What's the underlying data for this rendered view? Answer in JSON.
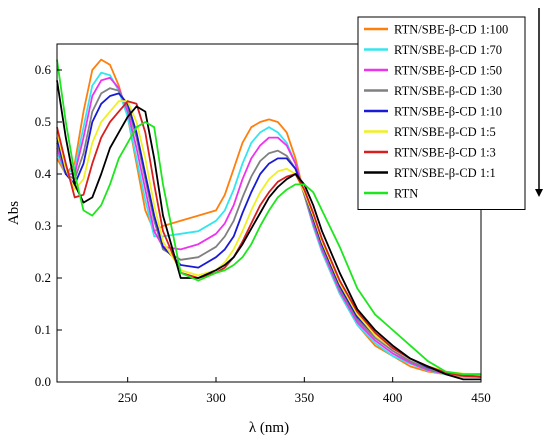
{
  "chart_data": {
    "type": "line",
    "xlabel": "λ (nm)",
    "ylabel": "Abs",
    "xlim": [
      210,
      450
    ],
    "ylim": [
      0.0,
      0.65
    ],
    "xticks": [
      250,
      300,
      350,
      400,
      450
    ],
    "yticks": [
      0.0,
      0.1,
      0.2,
      0.3,
      0.4,
      0.5,
      0.6
    ],
    "ytick_labels": [
      "0.0",
      "0.1",
      "0.2",
      "0.3",
      "0.4",
      "0.5",
      "0.6"
    ],
    "grid": false,
    "legend_position": "top-right",
    "legend_arrow": "down",
    "series": [
      {
        "name": "RTN/SBE-β-CD 1:100",
        "color": "#ff7f0e",
        "x": [
          210,
          215,
          220,
          225,
          230,
          235,
          240,
          245,
          250,
          255,
          260,
          265,
          270,
          280,
          290,
          300,
          305,
          310,
          315,
          320,
          325,
          330,
          335,
          340,
          345,
          350,
          355,
          360,
          370,
          380,
          390,
          400,
          410,
          420,
          430,
          440,
          450
        ],
        "y": [
          0.43,
          0.4,
          0.42,
          0.52,
          0.6,
          0.62,
          0.61,
          0.57,
          0.51,
          0.42,
          0.33,
          0.29,
          0.3,
          0.31,
          0.32,
          0.33,
          0.36,
          0.41,
          0.46,
          0.49,
          0.5,
          0.505,
          0.5,
          0.48,
          0.43,
          0.36,
          0.3,
          0.25,
          0.17,
          0.11,
          0.07,
          0.05,
          0.03,
          0.02,
          0.015,
          0.01,
          0.01
        ]
      },
      {
        "name": "RTN/SBE-β-CD 1:70",
        "color": "#33e6ee",
        "x": [
          210,
          215,
          220,
          225,
          230,
          235,
          240,
          245,
          250,
          255,
          260,
          265,
          270,
          280,
          290,
          300,
          305,
          310,
          315,
          320,
          325,
          330,
          335,
          340,
          345,
          350,
          355,
          360,
          370,
          380,
          390,
          400,
          410,
          420,
          430,
          440,
          450
        ],
        "y": [
          0.44,
          0.4,
          0.41,
          0.49,
          0.57,
          0.595,
          0.59,
          0.56,
          0.51,
          0.43,
          0.35,
          0.28,
          0.28,
          0.285,
          0.29,
          0.31,
          0.33,
          0.37,
          0.42,
          0.46,
          0.48,
          0.49,
          0.48,
          0.46,
          0.42,
          0.36,
          0.3,
          0.25,
          0.17,
          0.11,
          0.075,
          0.05,
          0.035,
          0.022,
          0.015,
          0.012,
          0.01
        ]
      },
      {
        "name": "RTN/SBE-β-CD 1:50",
        "color": "#ee33ee",
        "x": [
          210,
          215,
          220,
          225,
          230,
          235,
          240,
          245,
          250,
          255,
          260,
          265,
          270,
          280,
          290,
          300,
          305,
          310,
          315,
          320,
          325,
          330,
          335,
          340,
          345,
          350,
          355,
          360,
          370,
          380,
          390,
          400,
          410,
          420,
          430,
          440,
          450
        ],
        "y": [
          0.45,
          0.4,
          0.4,
          0.47,
          0.55,
          0.58,
          0.585,
          0.565,
          0.52,
          0.45,
          0.37,
          0.29,
          0.26,
          0.255,
          0.265,
          0.285,
          0.305,
          0.34,
          0.39,
          0.43,
          0.455,
          0.47,
          0.47,
          0.455,
          0.42,
          0.36,
          0.305,
          0.255,
          0.175,
          0.115,
          0.08,
          0.055,
          0.037,
          0.023,
          0.016,
          0.012,
          0.01
        ]
      },
      {
        "name": "RTN/SBE-β-CD 1:30",
        "color": "#808080",
        "x": [
          210,
          215,
          220,
          225,
          230,
          235,
          240,
          245,
          250,
          255,
          260,
          265,
          270,
          280,
          290,
          300,
          305,
          310,
          315,
          320,
          325,
          330,
          335,
          340,
          345,
          350,
          355,
          360,
          370,
          380,
          390,
          400,
          410,
          420,
          430,
          440,
          450
        ],
        "y": [
          0.46,
          0.4,
          0.39,
          0.44,
          0.52,
          0.555,
          0.565,
          0.56,
          0.53,
          0.47,
          0.39,
          0.31,
          0.255,
          0.235,
          0.24,
          0.26,
          0.28,
          0.31,
          0.355,
          0.395,
          0.425,
          0.44,
          0.445,
          0.435,
          0.41,
          0.36,
          0.31,
          0.26,
          0.18,
          0.12,
          0.085,
          0.06,
          0.04,
          0.025,
          0.017,
          0.013,
          0.01
        ]
      },
      {
        "name": "RTN/SBE-β-CD 1:10",
        "color": "#1a1ad6",
        "x": [
          210,
          215,
          220,
          225,
          230,
          235,
          240,
          245,
          250,
          255,
          260,
          265,
          270,
          280,
          290,
          300,
          305,
          310,
          315,
          320,
          325,
          330,
          335,
          340,
          345,
          350,
          355,
          360,
          370,
          380,
          390,
          400,
          410,
          420,
          430,
          440,
          450
        ],
        "y": [
          0.47,
          0.4,
          0.38,
          0.42,
          0.5,
          0.535,
          0.55,
          0.555,
          0.535,
          0.48,
          0.4,
          0.32,
          0.26,
          0.225,
          0.22,
          0.24,
          0.255,
          0.28,
          0.325,
          0.365,
          0.4,
          0.42,
          0.43,
          0.43,
          0.41,
          0.365,
          0.315,
          0.265,
          0.185,
          0.125,
          0.09,
          0.065,
          0.045,
          0.028,
          0.019,
          0.015,
          0.015
        ]
      },
      {
        "name": "RTN/SBE-β-CD 1:5",
        "color": "#f0f020",
        "x": [
          210,
          215,
          220,
          225,
          230,
          235,
          240,
          245,
          250,
          255,
          260,
          265,
          270,
          280,
          290,
          300,
          305,
          310,
          315,
          320,
          325,
          330,
          335,
          340,
          345,
          350,
          355,
          360,
          370,
          380,
          390,
          400,
          410,
          420,
          430,
          440,
          450
        ],
        "y": [
          0.48,
          0.41,
          0.37,
          0.39,
          0.46,
          0.5,
          0.52,
          0.54,
          0.54,
          0.5,
          0.43,
          0.34,
          0.27,
          0.215,
          0.205,
          0.215,
          0.23,
          0.255,
          0.29,
          0.33,
          0.365,
          0.39,
          0.405,
          0.41,
          0.4,
          0.365,
          0.32,
          0.27,
          0.19,
          0.13,
          0.09,
          0.065,
          0.045,
          0.03,
          0.02,
          0.016,
          0.015
        ]
      },
      {
        "name": "RTN/SBE-β-CD 1:3",
        "color": "#d81e1e",
        "x": [
          210,
          215,
          220,
          225,
          230,
          235,
          240,
          245,
          250,
          255,
          260,
          265,
          270,
          280,
          290,
          300,
          305,
          310,
          315,
          320,
          325,
          330,
          335,
          340,
          345,
          350,
          355,
          360,
          370,
          380,
          390,
          400,
          410,
          420,
          430,
          440,
          450
        ],
        "y": [
          0.49,
          0.42,
          0.355,
          0.36,
          0.42,
          0.47,
          0.5,
          0.52,
          0.54,
          0.535,
          0.48,
          0.38,
          0.29,
          0.21,
          0.2,
          0.21,
          0.22,
          0.24,
          0.27,
          0.305,
          0.34,
          0.365,
          0.385,
          0.395,
          0.4,
          0.37,
          0.325,
          0.275,
          0.195,
          0.135,
          0.095,
          0.065,
          0.045,
          0.03,
          0.018,
          0.012,
          0.01
        ]
      },
      {
        "name": "RTN/SBE-β-CD 1:1",
        "color": "#000000",
        "x": [
          210,
          215,
          220,
          225,
          230,
          235,
          240,
          245,
          250,
          255,
          260,
          265,
          270,
          280,
          290,
          300,
          305,
          310,
          315,
          320,
          325,
          330,
          335,
          340,
          345,
          350,
          355,
          360,
          370,
          380,
          390,
          400,
          410,
          420,
          430,
          440,
          450
        ],
        "y": [
          0.58,
          0.47,
          0.38,
          0.345,
          0.355,
          0.4,
          0.45,
          0.48,
          0.51,
          0.53,
          0.52,
          0.43,
          0.32,
          0.2,
          0.2,
          0.215,
          0.225,
          0.24,
          0.265,
          0.295,
          0.325,
          0.355,
          0.375,
          0.39,
          0.4,
          0.38,
          0.34,
          0.29,
          0.21,
          0.14,
          0.1,
          0.07,
          0.045,
          0.03,
          0.015,
          0.005,
          0.005
        ]
      },
      {
        "name": "RTN",
        "color": "#1ee61e",
        "x": [
          210,
          215,
          220,
          225,
          230,
          235,
          240,
          245,
          250,
          255,
          260,
          265,
          270,
          280,
          290,
          300,
          305,
          310,
          315,
          320,
          325,
          330,
          335,
          340,
          345,
          350,
          355,
          360,
          370,
          380,
          390,
          400,
          410,
          420,
          430,
          440,
          450
        ],
        "y": [
          0.62,
          0.5,
          0.4,
          0.33,
          0.32,
          0.34,
          0.38,
          0.43,
          0.46,
          0.49,
          0.5,
          0.49,
          0.38,
          0.21,
          0.195,
          0.21,
          0.215,
          0.225,
          0.24,
          0.265,
          0.3,
          0.33,
          0.355,
          0.37,
          0.38,
          0.38,
          0.365,
          0.33,
          0.26,
          0.18,
          0.13,
          0.1,
          0.07,
          0.04,
          0.02,
          0.015,
          0.015
        ]
      }
    ]
  }
}
